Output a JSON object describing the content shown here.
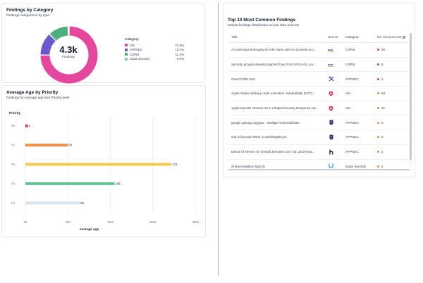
{
  "category_card": {
    "title": "Findings by Category",
    "subtitle": "Findings categorized by type",
    "total_value": "4.3k",
    "total_label": "Findings",
    "legend_title": "Category",
    "legend": [
      {
        "name": "VM",
        "pct": "74.9%",
        "value": 74.9,
        "color": "#e5469e"
      },
      {
        "name": "APPSEC",
        "pct": "13.1%",
        "value": 13.1,
        "color": "#6a5acd"
      },
      {
        "name": "CSPM",
        "pct": "11.4%",
        "value": 11.4,
        "color": "#4caf7d"
      },
      {
        "name": "SaaS Security",
        "pct": "0.6%",
        "value": 0.6,
        "color": "#7ec8e3"
      }
    ]
  },
  "age_card": {
    "title": "Average Age by Priority",
    "subtitle": "Findings by average age and Priority level",
    "chart_data": {
      "type": "bar",
      "orientation": "horizontal",
      "ylabel": "Priority",
      "xlabel": "Average Age",
      "categories": [
        "P0",
        "P1",
        "P2",
        "P3",
        "P4"
      ],
      "values": [
        3,
        50,
        172,
        105,
        64
      ],
      "value_labels": [
        "3",
        "50",
        "172",
        "105",
        "64"
      ],
      "colors": [
        "#d8366a",
        "#f0904a",
        "#f4c94e",
        "#5fc592",
        "#d6e4f0"
      ],
      "xlim": [
        0,
        200
      ],
      "xticks": [
        "0d",
        "50d",
        "100d",
        "150d",
        "200d"
      ],
      "grid": true
    }
  },
  "table_card": {
    "title": "Top 10 Most Common Findings",
    "subtitle": "Critical findings distribution across data sources",
    "columns": {
      "title": "Title",
      "source": "Source",
      "category": "Category",
      "occurrences": "No. Occurrences"
    },
    "rows": [
      {
        "title": "Access keys belonging to IAM Users with no Console acc...",
        "source_icon": "aws-icon",
        "category": "CSPM",
        "occ": "25",
        "dot": "#e03b5d"
      },
      {
        "title": "Security groups allowing ingress from 0.0.0.0/0 to ALL po...",
        "source_icon": "aws-icon",
        "category": "CSPM",
        "occ": "5",
        "dot": "#e03b5d"
      },
      {
        "title": "Client DOM XSS",
        "source_icon": "crossed-swords-icon",
        "category": "APPSEC",
        "occ": "1",
        "dot": "#e03b5d"
      },
      {
        "title": "Apple Safari arbitrary code execution Vulnerability (HT21...",
        "source_icon": "shield-red-icon",
        "category": "VM",
        "occ": "54",
        "dot": "#f08a3c"
      },
      {
        "title": "Apple MacOS Ventura 13.4.1 Rapid Security Response Up...",
        "source_icon": "shield-red-icon",
        "category": "VM",
        "occ": "37",
        "dot": "#f08a3c"
      },
      {
        "title": "google.golang.org/grpc - Multiple Vulnerabilities",
        "source_icon": "badge-purple-icon",
        "category": "APPSEC",
        "occ": "6",
        "dot": "#f08a3c"
      },
      {
        "title": "Out-of-bounds Write in webkit2gtk3-jsc",
        "source_icon": "badge-purple-icon",
        "category": "APPSEC",
        "occ": "2",
        "dot": "#f08a3c"
      },
      {
        "title": "Denial of service on chnsaf.demosite.com via Upcertima...",
        "source_icon": "h-logo-icon",
        "category": "APPSEC",
        "occ": "1",
        "dot": "#f08a3c"
      },
      {
        "title": "Shared Mailbox Sign-In",
        "source_icon": "u-logo-icon",
        "category": "SaaS Security",
        "occ": "1",
        "dot": "#f08a3c"
      }
    ]
  }
}
